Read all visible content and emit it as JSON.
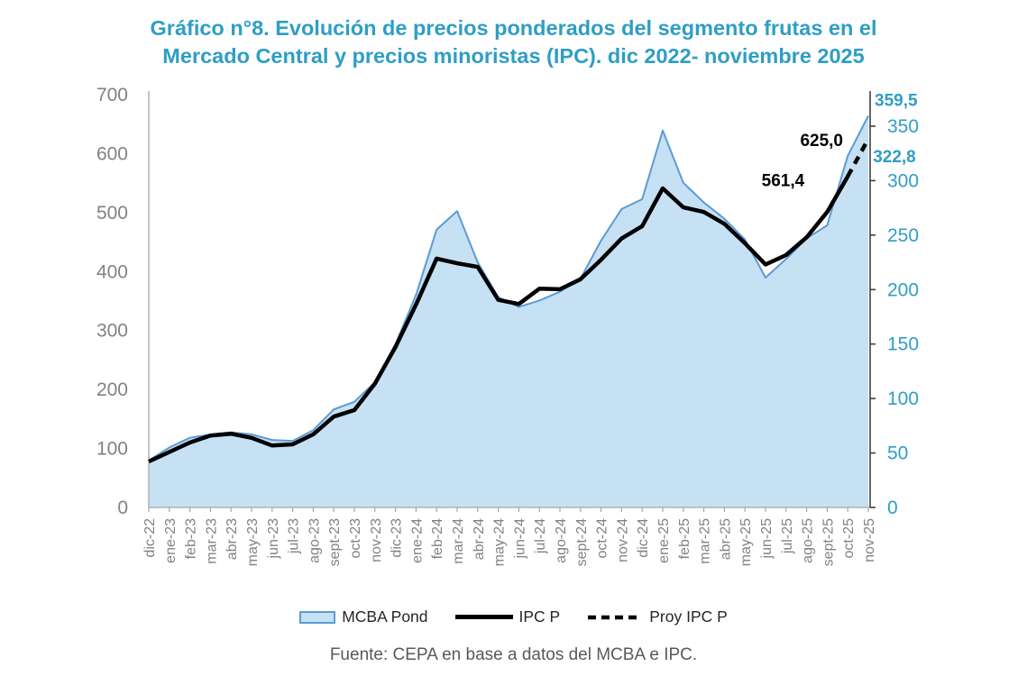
{
  "title": {
    "line1": "Gráfico n°8. Evolución de precios ponderados del segmento frutas en el",
    "line2": "Mercado Central y precios minoristas (IPC). dic 2022- noviembre 2025"
  },
  "source": "Fuente: CEPA en base a datos del MCBA e IPC.",
  "legend": [
    {
      "label": "MCBA Pond",
      "swatch": "area"
    },
    {
      "label": "IPC P",
      "swatch": "solid-line"
    },
    {
      "label": "Proy IPC P",
      "swatch": "dashed-line"
    }
  ],
  "colors": {
    "teal": "#2E9EC5",
    "axis_gray": "#828282",
    "grid_gray": "#A6A6A6",
    "right_axis_line": "#404040",
    "area_fill": "#C6E1F3",
    "area_stroke": "#5B9BD5",
    "series_black": "#000000",
    "legend_text": "#262626",
    "source_gray": "#595959"
  },
  "chart_data": {
    "type": "area+line",
    "title": "Gráfico n°8. Evolución de precios ponderados del segmento frutas en el Mercado Central y precios minoristas (IPC). dic 2022- noviembre 2025",
    "legend_position": "bottom",
    "grid": false,
    "categories": [
      "dic-22",
      "ene-23",
      "feb-23",
      "mar-23",
      "abr-23",
      "may-23",
      "jun-23",
      "jul-23",
      "ago-23",
      "sept-23",
      "oct-23",
      "nov-23",
      "dic-23",
      "ene-24",
      "feb-24",
      "mar-24",
      "abr-24",
      "may-24",
      "jun-24",
      "jul-24",
      "ago-24",
      "sept-24",
      "oct-24",
      "nov-24",
      "dic-24",
      "ene-25",
      "feb-25",
      "mar-25",
      "abr-25",
      "may-25",
      "jun-25",
      "jul-25",
      "ago-25",
      "sept-25",
      "oct-25",
      "nov-25"
    ],
    "series": [
      {
        "name": "MCBA Pond",
        "style": "area",
        "axis": "right",
        "values": [
          43,
          55,
          64,
          67,
          69,
          67,
          62,
          61,
          71,
          90,
          97,
          115,
          150,
          195,
          255,
          272,
          225,
          193,
          184,
          190,
          198,
          210,
          245,
          274,
          283,
          346,
          298,
          280,
          265,
          246,
          211,
          228,
          247,
          259,
          322.8,
          359.5
        ]
      },
      {
        "name": "IPC P",
        "style": "line",
        "axis": "left",
        "values": [
          78,
          94,
          110,
          122,
          125,
          118,
          105,
          107,
          124,
          154,
          165,
          210,
          272,
          344,
          422,
          414,
          408,
          352,
          345,
          371,
          370,
          387,
          420,
          456,
          477,
          541,
          509,
          501,
          481,
          448,
          412,
          428,
          458,
          501,
          561.4,
          null
        ]
      },
      {
        "name": "Proy IPC P",
        "style": "dashed-line",
        "axis": "left",
        "values": [
          null,
          null,
          null,
          null,
          null,
          null,
          null,
          null,
          null,
          null,
          null,
          null,
          null,
          null,
          null,
          null,
          null,
          null,
          null,
          null,
          null,
          null,
          null,
          null,
          null,
          null,
          null,
          null,
          null,
          null,
          null,
          null,
          null,
          null,
          561.4,
          625.0
        ]
      }
    ],
    "left_axis": {
      "min": 0,
      "max": 700,
      "ticks": [
        0,
        100,
        200,
        300,
        400,
        500,
        600,
        700
      ]
    },
    "right_axis": {
      "min": 0,
      "scale_max": 350,
      "ticks": [
        0,
        50,
        100,
        150,
        200,
        250,
        300,
        350
      ]
    },
    "annotations": [
      {
        "id": "proy-end",
        "text": "625,0",
        "month": "nov-25",
        "value": 625.0,
        "axis": "left",
        "color": "series_black"
      },
      {
        "id": "ipc-last",
        "text": "561,4",
        "month": "oct-25",
        "value": 561.4,
        "axis": "left",
        "color": "series_black"
      },
      {
        "id": "mcba-end",
        "text": "359,5",
        "month": "nov-25",
        "value": 359.5,
        "axis": "right",
        "color": "teal"
      },
      {
        "id": "mcba-oct",
        "text": "322,8",
        "month": "oct-25",
        "value": 322.8,
        "axis": "right",
        "color": "teal"
      }
    ]
  }
}
